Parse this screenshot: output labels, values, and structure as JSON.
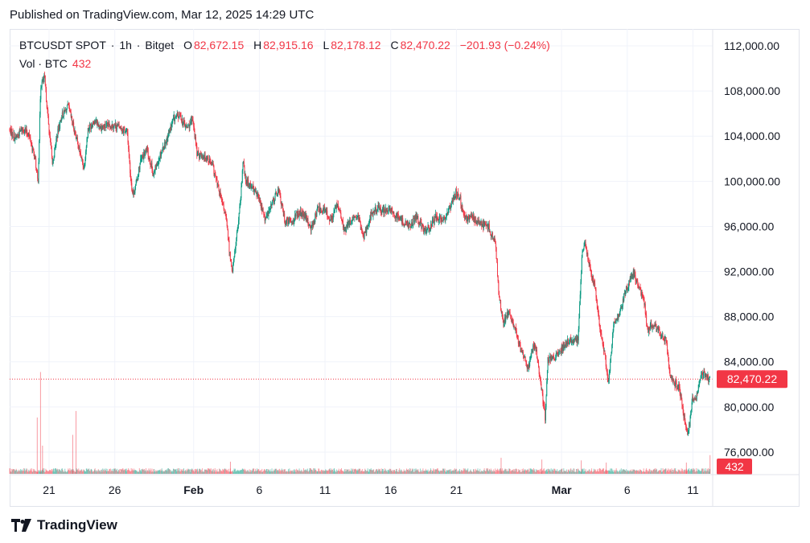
{
  "header": {
    "published": "Published on TradingView.com, Mar 12, 2025 14:29 UTC"
  },
  "legend": {
    "symbol": "BTCUSDT SPOT",
    "interval": "1h",
    "exchange": "Bitget",
    "open_label": "O",
    "open": "82,672.15",
    "high_label": "H",
    "high": "82,915.16",
    "low_label": "L",
    "low": "82,178.12",
    "close_label": "C",
    "close": "82,470.22",
    "change": "−201.93 (−0.24%)",
    "volume_label": "Vol · BTC",
    "volume": "432"
  },
  "brand": {
    "name": "TradingView"
  },
  "colors": {
    "up": "#089981",
    "down": "#f23645",
    "grid": "#f0f3fa",
    "text": "#131722"
  },
  "chart_data": {
    "type": "candlestick",
    "interval": "1h",
    "y_axis_ticks": [
      "112,000.00",
      "108,000.00",
      "104,000.00",
      "100,000.00",
      "96,000.00",
      "92,000.00",
      "88,000.00",
      "84,000.00",
      "80,000.00",
      "76,000.00"
    ],
    "ylim": [
      74000,
      113500
    ],
    "x_axis_ticks": [
      {
        "label": "21",
        "day": 0,
        "bold": false
      },
      {
        "label": "26",
        "day": 5,
        "bold": false
      },
      {
        "label": "Feb",
        "day": 11,
        "bold": true
      },
      {
        "label": "6",
        "day": 16,
        "bold": false
      },
      {
        "label": "11",
        "day": 21,
        "bold": false
      },
      {
        "label": "16",
        "day": 26,
        "bold": false
      },
      {
        "label": "21",
        "day": 31,
        "bold": false
      },
      {
        "label": "Mar",
        "day": 39,
        "bold": true
      },
      {
        "label": "6",
        "day": 44,
        "bold": false
      },
      {
        "label": "11",
        "day": 49,
        "bold": false
      }
    ],
    "xlim_days": [
      -3,
      50.5
    ],
    "price_path": [
      [
        -3,
        104600
      ],
      [
        -2.5,
        103800
      ],
      [
        -2,
        104700
      ],
      [
        -1.5,
        104200
      ],
      [
        -1,
        101800
      ],
      [
        -0.8,
        99800
      ],
      [
        -0.6,
        108500
      ],
      [
        -0.3,
        109200
      ],
      [
        0,
        105000
      ],
      [
        0.3,
        101500
      ],
      [
        0.6,
        103800
      ],
      [
        1,
        105800
      ],
      [
        1.5,
        106600
      ],
      [
        2,
        104400
      ],
      [
        2.5,
        102000
      ],
      [
        2.7,
        101200
      ],
      [
        3,
        104600
      ],
      [
        3.5,
        105400
      ],
      [
        4,
        104800
      ],
      [
        4.5,
        104900
      ],
      [
        5,
        105000
      ],
      [
        5.5,
        104700
      ],
      [
        6,
        104300
      ],
      [
        6.2,
        101000
      ],
      [
        6.4,
        98800
      ],
      [
        6.6,
        99400
      ],
      [
        7,
        101800
      ],
      [
        7.5,
        102800
      ],
      [
        8,
        100600
      ],
      [
        8.5,
        102400
      ],
      [
        9,
        103700
      ],
      [
        9.5,
        105500
      ],
      [
        10,
        105800
      ],
      [
        10.5,
        104700
      ],
      [
        11,
        105400
      ],
      [
        11.3,
        102400
      ],
      [
        11.7,
        102300
      ],
      [
        12,
        102200
      ],
      [
        12.5,
        101300
      ],
      [
        13,
        99000
      ],
      [
        13.5,
        96800
      ],
      [
        13.8,
        93500
      ],
      [
        14,
        92000
      ],
      [
        14.3,
        95000
      ],
      [
        14.6,
        98000
      ],
      [
        14.8,
        101800
      ],
      [
        15,
        100000
      ],
      [
        15.5,
        99600
      ],
      [
        16,
        98500
      ],
      [
        16.5,
        96600
      ],
      [
        17,
        98000
      ],
      [
        17.5,
        99300
      ],
      [
        18,
        96400
      ],
      [
        18.5,
        96500
      ],
      [
        19,
        97200
      ],
      [
        19.5,
        96900
      ],
      [
        20,
        95800
      ],
      [
        20.5,
        97600
      ],
      [
        21,
        97400
      ],
      [
        21.5,
        96600
      ],
      [
        22,
        98000
      ],
      [
        22.5,
        95600
      ],
      [
        23,
        96500
      ],
      [
        23.5,
        96800
      ],
      [
        24,
        95200
      ],
      [
        24.5,
        96900
      ],
      [
        25,
        97600
      ],
      [
        25.5,
        97400
      ],
      [
        26,
        97400
      ],
      [
        26.5,
        96900
      ],
      [
        27,
        96400
      ],
      [
        27.5,
        96100
      ],
      [
        28,
        96800
      ],
      [
        28.5,
        95700
      ],
      [
        29,
        95800
      ],
      [
        29.5,
        96900
      ],
      [
        30,
        96500
      ],
      [
        30.5,
        97600
      ],
      [
        31,
        99000
      ],
      [
        31.3,
        98600
      ],
      [
        31.6,
        96700
      ],
      [
        32,
        96800
      ],
      [
        32.5,
        96600
      ],
      [
        33,
        96200
      ],
      [
        33.5,
        95900
      ],
      [
        34,
        94500
      ],
      [
        34.3,
        89800
      ],
      [
        34.6,
        87300
      ],
      [
        35,
        88400
      ],
      [
        35.5,
        87000
      ],
      [
        36,
        84800
      ],
      [
        36.5,
        83500
      ],
      [
        37,
        85800
      ],
      [
        37.5,
        81700
      ],
      [
        37.8,
        79000
      ],
      [
        38,
        84300
      ],
      [
        38.5,
        84400
      ],
      [
        39,
        85000
      ],
      [
        39.5,
        85900
      ],
      [
        40,
        85800
      ],
      [
        40.3,
        86000
      ],
      [
        40.6,
        93500
      ],
      [
        40.8,
        94500
      ],
      [
        41.2,
        92500
      ],
      [
        41.6,
        90500
      ],
      [
        42,
        86600
      ],
      [
        42.3,
        85000
      ],
      [
        42.6,
        81900
      ],
      [
        43,
        87200
      ],
      [
        43.5,
        88400
      ],
      [
        43.8,
        89900
      ],
      [
        44,
        90500
      ],
      [
        44.5,
        91800
      ],
      [
        45,
        90300
      ],
      [
        45.3,
        89600
      ],
      [
        45.6,
        86800
      ],
      [
        46,
        87400
      ],
      [
        46.5,
        86500
      ],
      [
        47,
        85800
      ],
      [
        47.3,
        82800
      ],
      [
        47.6,
        82200
      ],
      [
        48,
        81700
      ],
      [
        48.3,
        79500
      ],
      [
        48.6,
        77700
      ],
      [
        48.8,
        78600
      ],
      [
        49,
        80700
      ],
      [
        49.3,
        80900
      ],
      [
        49.6,
        82700
      ],
      [
        50,
        82900
      ],
      [
        50.3,
        82470
      ]
    ],
    "volume_scale_btc": 2600,
    "volume_spikes": [
      {
        "day": -0.9,
        "btc": 1300
      },
      {
        "day": -0.65,
        "btc": 2350
      },
      {
        "day": -0.5,
        "btc": 650
      },
      {
        "day": 1.8,
        "btc": 900
      },
      {
        "day": 2.05,
        "btc": 1450
      },
      {
        "day": 13.8,
        "btc": 280
      },
      {
        "day": 34.4,
        "btc": 370
      },
      {
        "day": 37.5,
        "btc": 330
      },
      {
        "day": 40.5,
        "btc": 310
      },
      {
        "day": 42.4,
        "btc": 260
      },
      {
        "day": 48.5,
        "btc": 260
      },
      {
        "day": 50.3,
        "btc": 432
      }
    ],
    "last_price": "82,470.22",
    "last_price_value": 82470.22,
    "last_volume": "432"
  }
}
